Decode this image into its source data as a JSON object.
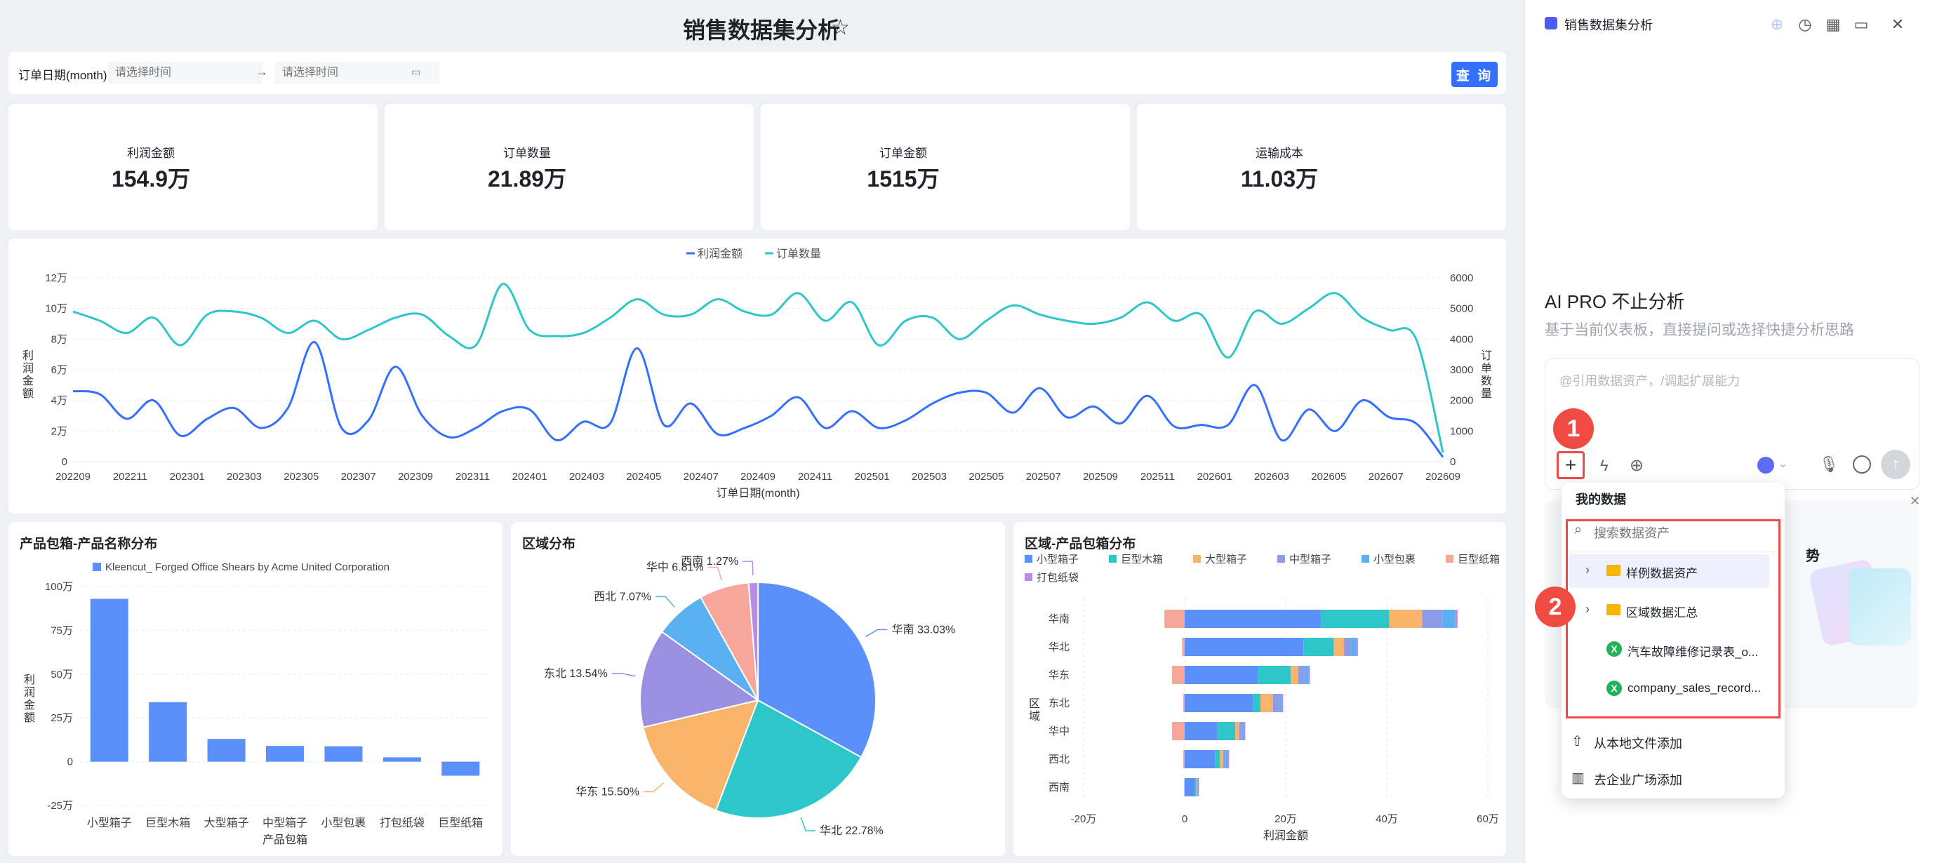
{
  "header": {
    "title": "销售数据集分析",
    "star_icon": "star-icon"
  },
  "filter": {
    "label": "订单日期(month)",
    "start_placeholder": "请选择时间",
    "end_placeholder": "请选择时间",
    "query_label": "查 询"
  },
  "kpis": [
    {
      "label": "利润金额",
      "value": "154.9万"
    },
    {
      "label": "订单数量",
      "value": "21.89万"
    },
    {
      "label": "订单金额",
      "value": "1515万"
    },
    {
      "label": "运输成本",
      "value": "11.03万"
    }
  ],
  "charts": {
    "bar_title": "产品包箱-产品名称分布",
    "pie_title": "区域分布",
    "stack_title": "区域-产品包箱分布"
  },
  "chart_data": [
    {
      "type": "line",
      "legend": [
        "利润金额",
        "订单数量"
      ],
      "xlabel": "订单日期(month)",
      "ylabel_left": "利润金额",
      "ylabel_right": "订单数量",
      "x_tick_labels": [
        "202209",
        "202211",
        "202301",
        "202303",
        "202305",
        "202307",
        "202309",
        "202311",
        "202401",
        "202403",
        "202405",
        "202407",
        "202409",
        "202411",
        "202501",
        "202503",
        "202505",
        "202507",
        "202509",
        "202511",
        "202601",
        "202603",
        "202605",
        "202607",
        "202609"
      ],
      "y_left_ticks": [
        "0",
        "2万",
        "4万",
        "6万",
        "8万",
        "10万",
        "12万"
      ],
      "y_right_ticks": [
        "0",
        "1000",
        "2000",
        "3000",
        "4000",
        "5000",
        "6000"
      ],
      "ylim_left": [
        0,
        120000
      ],
      "ylim_right": [
        0,
        6000
      ],
      "colors": [
        "#3370ff",
        "#2ec7c9"
      ],
      "series": [
        {
          "name": "利润金额",
          "axis": "left",
          "values": [
            46000,
            44000,
            28000,
            40000,
            17000,
            28000,
            35000,
            22000,
            35000,
            78000,
            22000,
            27000,
            62000,
            30000,
            16000,
            22000,
            33000,
            34000,
            14000,
            26000,
            25000,
            74000,
            24000,
            38000,
            18000,
            22000,
            30000,
            42000,
            22000,
            33000,
            22000,
            27000,
            38000,
            45000,
            45000,
            32000,
            48000,
            29000,
            36000,
            25000,
            43000,
            23000,
            24000,
            24000,
            50000,
            14000,
            34000,
            20000,
            40000,
            29000,
            25000,
            3000
          ]
        },
        {
          "name": "订单数量",
          "axis": "right",
          "values": [
            4900,
            4600,
            4200,
            4700,
            3800,
            4800,
            4900,
            4700,
            4200,
            4600,
            4000,
            4300,
            4700,
            4800,
            4100,
            3800,
            5800,
            4300,
            4100,
            4200,
            4700,
            5300,
            4800,
            4800,
            5300,
            4900,
            4800,
            5500,
            4600,
            5200,
            3800,
            4600,
            4700,
            4000,
            4600,
            5100,
            4800,
            4600,
            4500,
            4700,
            5200,
            4600,
            4800,
            3400,
            4900,
            4500,
            5000,
            5500,
            4700,
            4300,
            4000,
            300
          ]
        }
      ]
    },
    {
      "type": "bar",
      "legend": "Kleencut_ Forged Office Shears by Acme United Corporation",
      "categories": [
        "小型箱子",
        "巨型木箱",
        "大型箱子",
        "中型箱子",
        "小型包裹",
        "打包纸袋",
        "巨型纸箱"
      ],
      "values": [
        930000,
        340000,
        130000,
        90000,
        88000,
        25000,
        -80000
      ],
      "ylim": [
        -250000,
        1000000
      ],
      "y_tick_labels": [
        "-25万",
        "0",
        "25万",
        "50万",
        "75万",
        "100万"
      ],
      "xlabel": "产品包箱",
      "ylabel": "利润金额",
      "color": "#5b8ff9"
    },
    {
      "type": "pie",
      "slices": [
        {
          "label": "华南 33.03%",
          "value": 33.03,
          "color": "#5b8ff9"
        },
        {
          "label": "华北 22.78%",
          "value": 22.78,
          "color": "#2ec7c9"
        },
        {
          "label": "华东 15.50%",
          "value": 15.5,
          "color": "#f8b46b"
        },
        {
          "label": "东北 13.54%",
          "value": 13.54,
          "color": "#9a8fe0"
        },
        {
          "label": "西北 7.07%",
          "value": 7.07,
          "color": "#5ab0f0"
        },
        {
          "label": "华中 6.81%",
          "value": 6.81,
          "color": "#f7a79a"
        },
        {
          "label": "西南 1.27%",
          "value": 1.27,
          "color": "#b78ce6"
        }
      ]
    },
    {
      "type": "bar",
      "orientation": "horizontal-stacked",
      "categories": [
        "华南",
        "华北",
        "华东",
        "东北",
        "华中",
        "西北",
        "西南"
      ],
      "series_names": [
        "小型箱子",
        "巨型木箱",
        "大型箱子",
        "中型箱子",
        "小型包裹",
        "巨型纸箱",
        "打包纸袋"
      ],
      "colors": [
        "#5b8ff9",
        "#2ec7c9",
        "#f8b46b",
        "#8e9be8",
        "#5ab0f0",
        "#f7a79a",
        "#b78ce6"
      ],
      "rows": [
        [
          270000,
          135000,
          65000,
          40000,
          25000,
          -40000,
          5000
        ],
        [
          235000,
          60000,
          20000,
          15000,
          10000,
          -5000,
          3000
        ],
        [
          145000,
          65000,
          15000,
          12000,
          8000,
          -25000,
          3000
        ],
        [
          135000,
          15000,
          25000,
          12000,
          5000,
          -3000,
          3000
        ],
        [
          65000,
          35000,
          8000,
          5000,
          4000,
          -25000,
          3000
        ],
        [
          60000,
          10000,
          6000,
          5000,
          5000,
          -3000,
          2000
        ],
        [
          20000,
          3000,
          2000,
          2000,
          1000,
          -1000,
          500
        ]
      ],
      "xlim": [
        -200000,
        600000
      ],
      "x_tick_labels": [
        "-20万",
        "0",
        "20万",
        "40万",
        "60万"
      ],
      "xlabel": "利润金额",
      "ylabel": "区域"
    }
  ],
  "ai_panel": {
    "title": "销售数据集分析",
    "headline": "AI PRO 不止分析",
    "subtitle": "基于当前仪表板，直接提问或选择快捷分析思路",
    "input_placeholder": "@引用数据资产，/调起扩展能力",
    "suggestion_partial": "势"
  },
  "dropdown": {
    "section_title": "我的数据",
    "search_placeholder": "搜索数据资产",
    "items": [
      {
        "label": "样例数据资产",
        "type": "folder"
      },
      {
        "label": "区域数据汇总",
        "type": "folder"
      },
      {
        "label": "汽车故障维修记录表_o...",
        "type": "excel"
      },
      {
        "label": "company_sales_record...",
        "type": "excel"
      }
    ],
    "add_local": "从本地文件添加",
    "add_market": "去企业广场添加"
  },
  "annotations": [
    "1",
    "2"
  ]
}
